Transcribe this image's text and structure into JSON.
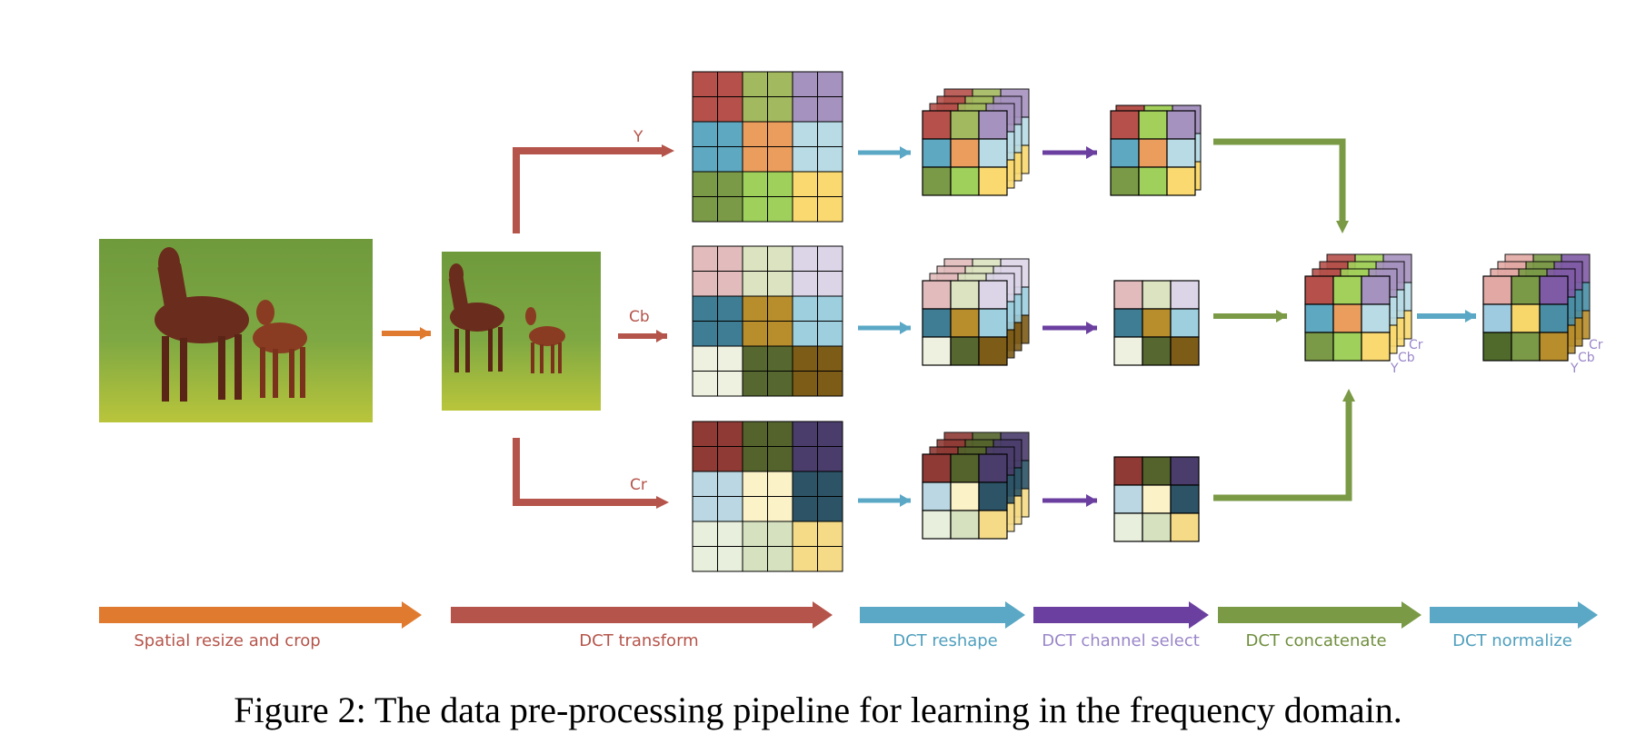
{
  "colors": {
    "orange": "#e07a2f",
    "red": "#b5544a",
    "blue": "#5aa8c6",
    "purple": "#6b3fa0",
    "green": "#7a9a45",
    "grid_line": "#000000",
    "label_purple": "#9a86c9"
  },
  "stages": [
    {
      "label": "Spatial resize and crop",
      "color": "#b5544a",
      "arrow_color": "#e07a2f"
    },
    {
      "label": "DCT transform",
      "color": "#b5544a",
      "arrow_color": "#b5544a"
    },
    {
      "label": "DCT reshape",
      "color": "#4f9fbd",
      "arrow_color": "#5aa8c6"
    },
    {
      "label": "DCT channel select",
      "color": "#9a86c9",
      "arrow_color": "#6b3fa0"
    },
    {
      "label": "DCT concatenate",
      "color": "#6f8e3d",
      "arrow_color": "#7a9a45"
    },
    {
      "label": "DCT normalize",
      "color": "#4f9fbd",
      "arrow_color": "#5aa8c6"
    }
  ],
  "channels": {
    "y": "Y",
    "cb": "Cb",
    "cr": "Cr"
  },
  "cube_labels": {
    "cr": "Cr",
    "cb": "Cb",
    "y": "Y"
  },
  "grids": {
    "y": [
      [
        "#b5504a",
        "#a3b95f",
        "#a692be"
      ],
      [
        "#5fa8c2",
        "#eb9d5d",
        "#b8dbe6"
      ],
      [
        "#7b9a48",
        "#9ed05b",
        "#f9d970"
      ]
    ],
    "cb": [
      [
        "#e2bcbc",
        "#dbe3c0",
        "#dcd5e8"
      ],
      [
        "#3f7d94",
        "#b88d2b",
        "#9dcfdf"
      ],
      [
        "#eef1e0",
        "#56682f",
        "#7d5c18"
      ]
    ],
    "cr": [
      [
        "#8f3a35",
        "#54632c",
        "#4a3d6b"
      ],
      [
        "#bad7e3",
        "#fbf2c7",
        "#2c5466"
      ],
      [
        "#e8efdc",
        "#d5e1bf",
        "#f5db87"
      ]
    ]
  },
  "selected": {
    "y": [
      [
        "#b5504a",
        "#a3d05b",
        "#a692be"
      ],
      [
        "#5fa8c2",
        "#eb9d5d",
        "#b8dbe6"
      ],
      [
        "#7b9a48",
        "#9ed05b",
        "#f9d970"
      ]
    ],
    "cb": [
      [
        "#e2bcbc",
        "#dbe3c0",
        "#dcd5e8"
      ],
      [
        "#3f7d94",
        "#b88d2b",
        "#9dcfdf"
      ],
      [
        "#eef1e0",
        "#56682f",
        "#7d5c18"
      ]
    ],
    "cr": [
      [
        "#8f3a35",
        "#54632c",
        "#4a3d6b"
      ],
      [
        "#bad7e3",
        "#fbf2c7",
        "#2c5466"
      ],
      [
        "#e8efdc",
        "#d5e1bf",
        "#f5db87"
      ]
    ]
  },
  "concat_front": [
    [
      "#b5504a",
      "#a3d05b",
      "#a692be"
    ],
    [
      "#5fa8c2",
      "#eb9d5d",
      "#b8dbe6"
    ],
    [
      "#7b9a48",
      "#9ed05b",
      "#f9d970"
    ]
  ],
  "normalize_front": [
    [
      "#e2a9a4",
      "#7b9a48",
      "#7f5ba6"
    ],
    [
      "#9fcbe0",
      "#f7d66a",
      "#4a8ea6"
    ],
    [
      "#4f6a2a",
      "#7b9a48",
      "#b88d2b"
    ]
  ],
  "back_colors": {
    "top": [
      "#b5504a",
      "#a3d05b",
      "#a692be",
      "#6b3fa0"
    ],
    "side": [
      "#a692be",
      "#b8dbe6",
      "#f9d970"
    ]
  },
  "caption": "Figure 2: The data pre-processing pipeline for learning in the frequency domain."
}
